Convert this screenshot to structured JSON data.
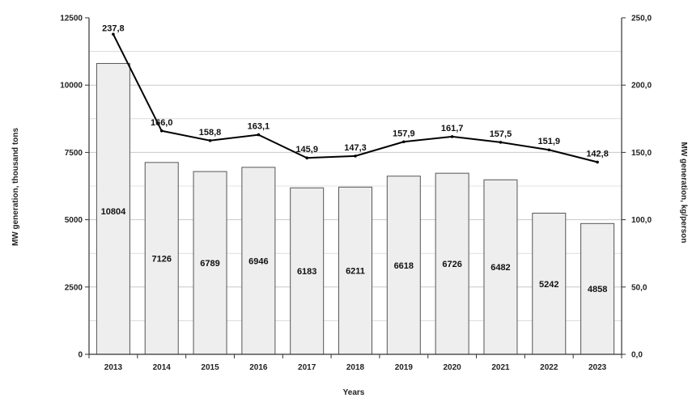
{
  "chart_data": {
    "type": "bar",
    "categories": [
      "2013",
      "2014",
      "2015",
      "2016",
      "2017",
      "2018",
      "2019",
      "2020",
      "2021",
      "2022",
      "2023"
    ],
    "series": [
      {
        "values": [
          10804,
          7126,
          6789,
          6946,
          6183,
          6211,
          6618,
          6726,
          6482,
          5242,
          4858
        ],
        "axis": "left",
        "kind": "bar"
      },
      {
        "values": [
          237.8,
          166.0,
          158.8,
          163.1,
          145.9,
          147.3,
          157.9,
          161.7,
          157.5,
          151.9,
          142.8
        ],
        "axis": "right",
        "kind": "line"
      }
    ],
    "bar_labels": [
      "10804",
      "7126",
      "6789",
      "6946",
      "6183",
      "6211",
      "6618",
      "6726",
      "6482",
      "5242",
      "4858"
    ],
    "line_labels": [
      "237,8",
      "166,0",
      "158,8",
      "163,1",
      "145,9",
      "147,3",
      "157,9",
      "161,7",
      "157,5",
      "151,9",
      "142,8"
    ],
    "xlabel": "Years",
    "ylabel": "MW generation, thousand tons",
    "ylabel_right": "MW generation, kg/person",
    "ylim": [
      0,
      12500
    ],
    "ylim_right": [
      0,
      250
    ],
    "yticks": [
      "0",
      "2500",
      "5000",
      "7500",
      "10000",
      "12500"
    ],
    "yticks_right": [
      "0,0",
      "50,0",
      "100,0",
      "150,0",
      "200,0",
      "250,0"
    ],
    "grid": true,
    "colors": {
      "bar_fill": "#eeeeee",
      "bar_stroke": "#555555",
      "line": "#000000",
      "grid": "#c8c8c8",
      "axis": "#333333"
    }
  }
}
